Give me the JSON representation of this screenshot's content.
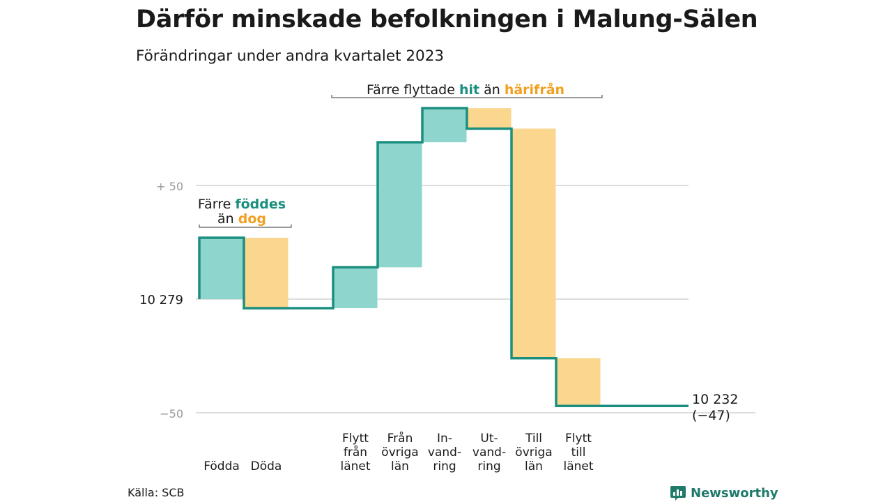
{
  "title": "Därför minskade befolkningen i Malung-Sälen",
  "subtitle": "Förändringar under andra kvartalet 2023",
  "source": "Källa: SCB",
  "logo": {
    "name": "Newsworthy",
    "icon": "bar-chart-logo-icon"
  },
  "colors": {
    "increase": "#8dd5cd",
    "decrease": "#fad68e",
    "line": "#1b8f7f",
    "teal_text": "#1b8f7f",
    "orange_text": "#f2a022",
    "grid": "#dddddd",
    "tick_text": "#999999"
  },
  "chart_data": {
    "type": "waterfall",
    "start_value": 10279,
    "end_value": 10232,
    "net_change": -47,
    "y_ticks": [
      {
        "value": 50,
        "label": "+  50"
      },
      {
        "value": 0,
        "label": "10  279"
      },
      {
        "value": -50,
        "label": "−50"
      }
    ],
    "categories": [
      {
        "label_lines": [
          "Födda"
        ],
        "change": 27,
        "kind": "increase"
      },
      {
        "label_lines": [
          "Döda"
        ],
        "change": -31,
        "kind": "decrease"
      },
      {
        "label_lines": [],
        "change": 0,
        "kind": "none"
      },
      {
        "label_lines": [
          "Flytt",
          "från",
          "länet"
        ],
        "change": 18,
        "kind": "increase"
      },
      {
        "label_lines": [
          "Från",
          "övriga",
          "län"
        ],
        "change": 55,
        "kind": "increase"
      },
      {
        "label_lines": [
          "In-",
          "vand-",
          "ring"
        ],
        "change": 15,
        "kind": "increase"
      },
      {
        "label_lines": [
          "Ut-",
          "vand-",
          "ring"
        ],
        "change": -9,
        "kind": "decrease"
      },
      {
        "label_lines": [
          "Till",
          "övriga",
          "län"
        ],
        "change": -101,
        "kind": "decrease"
      },
      {
        "label_lines": [
          "Flytt",
          "till",
          "länet"
        ],
        "change": -21,
        "kind": "decrease"
      }
    ],
    "end_label_lines": [
      "10 232",
      "(−47)"
    ],
    "annotations": [
      {
        "id": "births",
        "lines": [
          [
            {
              "text": "Färre ",
              "style": "plain"
            },
            {
              "text": "föddes",
              "style": "teal"
            }
          ],
          [
            {
              "text": "än ",
              "style": "plain"
            },
            {
              "text": "dog",
              "style": "orange"
            }
          ]
        ]
      },
      {
        "id": "moves",
        "lines": [
          [
            {
              "text": "Färre flyttade ",
              "style": "plain"
            },
            {
              "text": "hit",
              "style": "teal"
            },
            {
              "text": " än ",
              "style": "plain"
            },
            {
              "text": "härifrån",
              "style": "orange"
            }
          ]
        ]
      }
    ]
  }
}
